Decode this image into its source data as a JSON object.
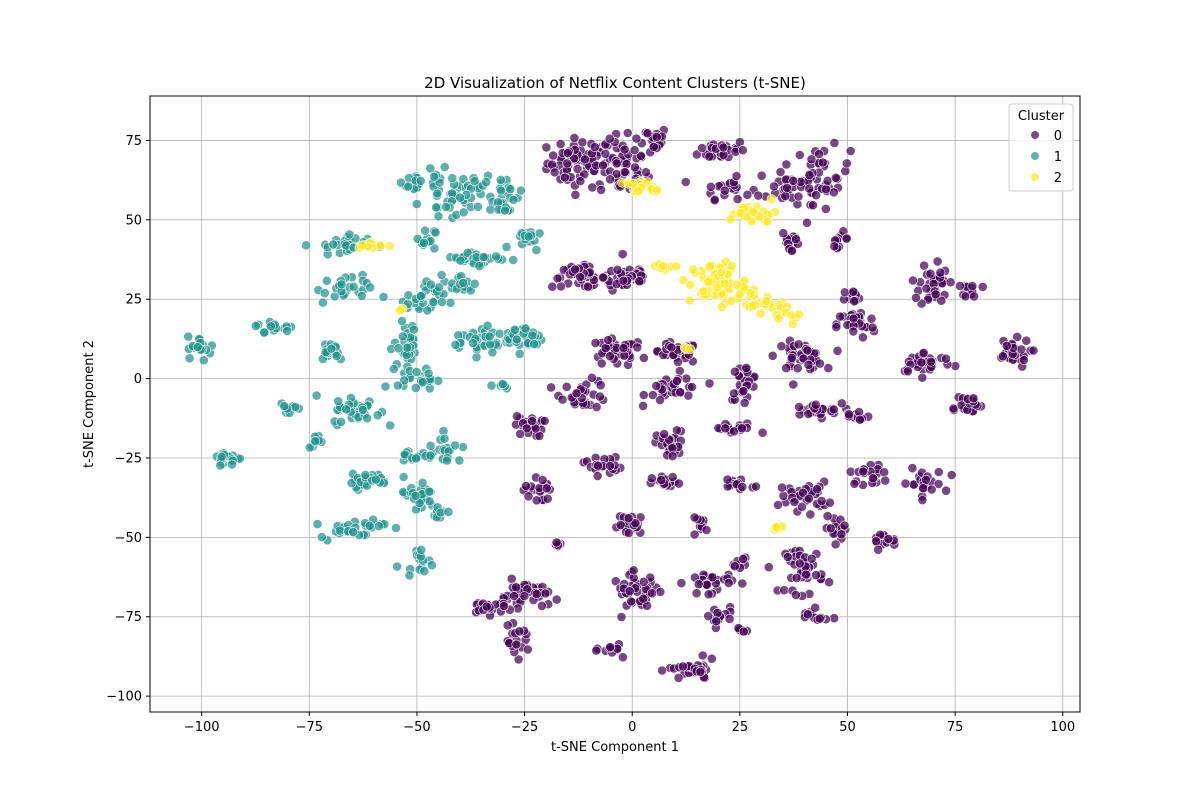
{
  "chart_data": {
    "type": "scatter",
    "title": "2D Visualization of Netflix Content Clusters (t-SNE)",
    "xlabel": "t-SNE Component 1",
    "ylabel": "t-SNE Component 2",
    "xlim": [
      -112,
      104
    ],
    "ylim": [
      -105,
      89
    ],
    "xticks": [
      -100,
      -75,
      -50,
      -25,
      0,
      25,
      50,
      75,
      100
    ],
    "yticks": [
      -100,
      -75,
      -50,
      -25,
      0,
      25,
      50,
      75
    ],
    "grid": true,
    "legend": {
      "title": "Cluster",
      "position": "top-right"
    },
    "series": [
      {
        "name": "0",
        "color": "#440154",
        "clusters": [
          {
            "cx": -12,
            "cy": 68,
            "rx": 7,
            "ry": 7,
            "n": 70
          },
          {
            "cx": -2,
            "cy": 66,
            "rx": 5,
            "ry": 8,
            "n": 45
          },
          {
            "cx": 4,
            "cy": 75,
            "rx": 4,
            "ry": 4,
            "n": 25
          },
          {
            "cx": 21,
            "cy": 72,
            "rx": 5,
            "ry": 3,
            "n": 35
          },
          {
            "cx": 22,
            "cy": 60,
            "rx": 5,
            "ry": 3,
            "n": 20
          },
          {
            "cx": 36,
            "cy": 60,
            "rx": 6,
            "ry": 6,
            "n": 30
          },
          {
            "cx": 44,
            "cy": 64,
            "rx": 6,
            "ry": 8,
            "n": 40
          },
          {
            "cx": 37,
            "cy": 43,
            "rx": 2,
            "ry": 4,
            "n": 15
          },
          {
            "cx": 48,
            "cy": 44,
            "rx": 2,
            "ry": 2,
            "n": 10
          },
          {
            "cx": -12,
            "cy": 32,
            "rx": 6,
            "ry": 3,
            "n": 40
          },
          {
            "cx": -1,
            "cy": 32,
            "rx": 5,
            "ry": 4,
            "n": 40
          },
          {
            "cx": -4,
            "cy": 8,
            "rx": 6,
            "ry": 4,
            "n": 35
          },
          {
            "cx": 10,
            "cy": 8,
            "rx": 5,
            "ry": 3,
            "n": 30
          },
          {
            "cx": 10,
            "cy": -3,
            "rx": 6,
            "ry": 4,
            "n": 30
          },
          {
            "cx": -11,
            "cy": -5,
            "rx": 5,
            "ry": 4,
            "n": 30
          },
          {
            "cx": 26,
            "cy": -1,
            "rx": 3,
            "ry": 5,
            "n": 25
          },
          {
            "cx": 39,
            "cy": 7,
            "rx": 5,
            "ry": 4,
            "n": 40
          },
          {
            "cx": 42,
            "cy": -10,
            "rx": 6,
            "ry": 2,
            "n": 25
          },
          {
            "cx": 52,
            "cy": 17,
            "rx": 4,
            "ry": 4,
            "n": 30
          },
          {
            "cx": 52,
            "cy": -12,
            "rx": 3,
            "ry": 2,
            "n": 15
          },
          {
            "cx": 52,
            "cy": 26,
            "rx": 3,
            "ry": 2,
            "n": 10
          },
          {
            "cx": 68,
            "cy": 5,
            "rx": 6,
            "ry": 3,
            "n": 35
          },
          {
            "cx": 70,
            "cy": 30,
            "rx": 3,
            "ry": 7,
            "n": 35
          },
          {
            "cx": 79,
            "cy": 28,
            "rx": 2,
            "ry": 2,
            "n": 12
          },
          {
            "cx": 77,
            "cy": -8,
            "rx": 4,
            "ry": 3,
            "n": 20
          },
          {
            "cx": 88,
            "cy": 8,
            "rx": 4,
            "ry": 4,
            "n": 30
          },
          {
            "cx": -24,
            "cy": -15,
            "rx": 3,
            "ry": 3,
            "n": 25
          },
          {
            "cx": -22,
            "cy": -35,
            "rx": 3,
            "ry": 4,
            "n": 20
          },
          {
            "cx": -7,
            "cy": -27,
            "rx": 4,
            "ry": 3,
            "n": 20
          },
          {
            "cx": 9,
            "cy": -21,
            "rx": 3,
            "ry": 4,
            "n": 30
          },
          {
            "cx": 8,
            "cy": -33,
            "rx": 3,
            "ry": 2,
            "n": 15
          },
          {
            "cx": 24,
            "cy": -16,
            "rx": 5,
            "ry": 2,
            "n": 15
          },
          {
            "cx": 25,
            "cy": -33,
            "rx": 5,
            "ry": 2,
            "n": 15
          },
          {
            "cx": 40,
            "cy": -37,
            "rx": 5,
            "ry": 4,
            "n": 35
          },
          {
            "cx": 55,
            "cy": -30,
            "rx": 4,
            "ry": 3,
            "n": 20
          },
          {
            "cx": 67,
            "cy": -33,
            "rx": 5,
            "ry": 4,
            "n": 25
          },
          {
            "cx": 48,
            "cy": -47,
            "rx": 3,
            "ry": 3,
            "n": 20
          },
          {
            "cx": 58,
            "cy": -51,
            "rx": 3,
            "ry": 2,
            "n": 15
          },
          {
            "cx": 0,
            "cy": -46,
            "rx": 3,
            "ry": 3,
            "n": 25
          },
          {
            "cx": 16,
            "cy": -46,
            "rx": 2,
            "ry": 2,
            "n": 10
          },
          {
            "cx": 40,
            "cy": -60,
            "rx": 4,
            "ry": 7,
            "n": 40
          },
          {
            "cx": 1,
            "cy": -67,
            "rx": 5,
            "ry": 5,
            "n": 40
          },
          {
            "cx": 18,
            "cy": -64,
            "rx": 5,
            "ry": 3,
            "n": 30
          },
          {
            "cx": 25,
            "cy": -58,
            "rx": 2,
            "ry": 2,
            "n": 8
          },
          {
            "cx": -25,
            "cy": -68,
            "rx": 5,
            "ry": 4,
            "n": 40
          },
          {
            "cx": -33,
            "cy": -72,
            "rx": 5,
            "ry": 2,
            "n": 25
          },
          {
            "cx": -27,
            "cy": -83,
            "rx": 3,
            "ry": 4,
            "n": 20
          },
          {
            "cx": -4,
            "cy": -85,
            "rx": 3,
            "ry": 2,
            "n": 12
          },
          {
            "cx": 14,
            "cy": -92,
            "rx": 5,
            "ry": 3,
            "n": 30
          },
          {
            "cx": 20,
            "cy": -75,
            "rx": 3,
            "ry": 3,
            "n": 15
          },
          {
            "cx": 42,
            "cy": -75,
            "rx": 3,
            "ry": 2,
            "n": 12
          },
          {
            "cx": 25,
            "cy": -80,
            "rx": 2,
            "ry": 2,
            "n": 6
          },
          {
            "cx": -17,
            "cy": -52,
            "rx": 1,
            "ry": 2,
            "n": 6
          }
        ]
      },
      {
        "name": "1",
        "color": "#21918c",
        "clusters": [
          {
            "cx": -50,
            "cy": 62,
            "rx": 3,
            "ry": 3,
            "n": 15
          },
          {
            "cx": -42,
            "cy": 58,
            "rx": 6,
            "ry": 6,
            "n": 45
          },
          {
            "cx": -30,
            "cy": 58,
            "rx": 4,
            "ry": 6,
            "n": 30
          },
          {
            "cx": -48,
            "cy": 44,
            "rx": 2,
            "ry": 3,
            "n": 12
          },
          {
            "cx": -36,
            "cy": 38,
            "rx": 7,
            "ry": 2,
            "n": 30
          },
          {
            "cx": -25,
            "cy": 44,
            "rx": 3,
            "ry": 3,
            "n": 15
          },
          {
            "cx": -68,
            "cy": 42,
            "rx": 6,
            "ry": 3,
            "n": 25
          },
          {
            "cx": -67,
            "cy": 28,
            "rx": 6,
            "ry": 4,
            "n": 25
          },
          {
            "cx": -48,
            "cy": 25,
            "rx": 4,
            "ry": 5,
            "n": 30
          },
          {
            "cx": -40,
            "cy": 30,
            "rx": 3,
            "ry": 3,
            "n": 15
          },
          {
            "cx": -52,
            "cy": 10,
            "rx": 3,
            "ry": 7,
            "n": 30
          },
          {
            "cx": -50,
            "cy": 0,
            "rx": 4,
            "ry": 3,
            "n": 25
          },
          {
            "cx": -35,
            "cy": 12,
            "rx": 6,
            "ry": 4,
            "n": 35
          },
          {
            "cx": -25,
            "cy": 13,
            "rx": 4,
            "ry": 4,
            "n": 30
          },
          {
            "cx": -31,
            "cy": -2,
            "rx": 3,
            "ry": 1,
            "n": 10
          },
          {
            "cx": -70,
            "cy": 9,
            "rx": 3,
            "ry": 3,
            "n": 20
          },
          {
            "cx": -83,
            "cy": 16,
            "rx": 4,
            "ry": 2,
            "n": 15
          },
          {
            "cx": -100,
            "cy": 10,
            "rx": 3,
            "ry": 3,
            "n": 20
          },
          {
            "cx": -64,
            "cy": -10,
            "rx": 5,
            "ry": 4,
            "n": 35
          },
          {
            "cx": -80,
            "cy": -9,
            "rx": 3,
            "ry": 2,
            "n": 10
          },
          {
            "cx": -73,
            "cy": -20,
            "rx": 2,
            "ry": 2,
            "n": 10
          },
          {
            "cx": -94,
            "cy": -25,
            "rx": 3,
            "ry": 2,
            "n": 20
          },
          {
            "cx": -50,
            "cy": -24,
            "rx": 4,
            "ry": 3,
            "n": 20
          },
          {
            "cx": -43,
            "cy": -22,
            "rx": 3,
            "ry": 4,
            "n": 15
          },
          {
            "cx": -62,
            "cy": -32,
            "rx": 5,
            "ry": 2,
            "n": 25
          },
          {
            "cx": -50,
            "cy": -37,
            "rx": 4,
            "ry": 5,
            "n": 25
          },
          {
            "cx": -45,
            "cy": -42,
            "rx": 2,
            "ry": 2,
            "n": 10
          },
          {
            "cx": -65,
            "cy": -47,
            "rx": 7,
            "ry": 3,
            "n": 30
          },
          {
            "cx": -50,
            "cy": -57,
            "rx": 3,
            "ry": 3,
            "n": 15
          }
        ]
      },
      {
        "name": "2",
        "color": "#fde725",
        "clusters": [
          {
            "cx": 3,
            "cy": 60,
            "rx": 4,
            "ry": 2,
            "n": 20
          },
          {
            "cx": 28,
            "cy": 52,
            "rx": 5,
            "ry": 3,
            "n": 30
          },
          {
            "cx": 20,
            "cy": 30,
            "rx": 6,
            "ry": 6,
            "n": 60
          },
          {
            "cx": 28,
            "cy": 24,
            "rx": 6,
            "ry": 3,
            "n": 25
          },
          {
            "cx": 37,
            "cy": 20,
            "rx": 3,
            "ry": 2,
            "n": 10
          },
          {
            "cx": 8,
            "cy": 35,
            "rx": 3,
            "ry": 1,
            "n": 8
          },
          {
            "cx": -61,
            "cy": 42,
            "rx": 3,
            "ry": 1,
            "n": 10
          },
          {
            "cx": 33,
            "cy": -47,
            "rx": 3,
            "ry": 1,
            "n": 8
          },
          {
            "cx": 13,
            "cy": 9,
            "rx": 1,
            "ry": 1,
            "n": 3
          },
          {
            "cx": -54,
            "cy": 22,
            "rx": 1,
            "ry": 1,
            "n": 3
          }
        ]
      }
    ]
  }
}
